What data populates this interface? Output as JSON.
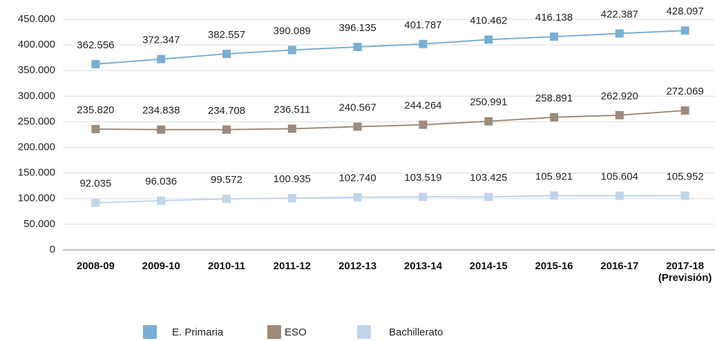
{
  "chart_data": {
    "type": "line",
    "categories": [
      "2008-09",
      "2009-10",
      "2010-11",
      "2011-12",
      "2012-13",
      "2013-14",
      "2014-15",
      "2015-16",
      "2016-17",
      "2017-18 (Previsión)"
    ],
    "series": [
      {
        "name": "E. Primaria",
        "color": "#7aafd3",
        "values": [
          362556,
          372347,
          382557,
          390089,
          396135,
          401787,
          410462,
          416138,
          422387,
          428097
        ],
        "value_labels": [
          "362.556",
          "372.347",
          "382.557",
          "390.089",
          "396.135",
          "401.787",
          "410.462",
          "416.138",
          "422.387",
          "428.097"
        ]
      },
      {
        "name": "ESO",
        "color": "#9d8b7b",
        "values": [
          235820,
          234838,
          234708,
          236511,
          240567,
          244264,
          250991,
          258891,
          262920,
          272069
        ],
        "value_labels": [
          "235.820",
          "234.838",
          "234.708",
          "236.511",
          "240.567",
          "244.264",
          "250.991",
          "258.891",
          "262.920",
          "272.069"
        ]
      },
      {
        "name": "Bachillerato",
        "color": "#bfd5ea",
        "values": [
          92035,
          96036,
          99572,
          100935,
          102740,
          103519,
          103425,
          105921,
          105604,
          105952
        ],
        "value_labels": [
          "92.035",
          "96.036",
          "99.572",
          "100.935",
          "102.740",
          "103.519",
          "103.425",
          "105.921",
          "105.604",
          "105.952"
        ]
      }
    ],
    "ylim": [
      0,
      450000
    ],
    "yticks": [
      0,
      {
        "value": 50000,
        "label": "50.000"
      },
      {
        "value": 100000,
        "label": "100.000"
      },
      {
        "value": 150000,
        "label": "150.000"
      },
      {
        "value": 200000,
        "label": "200.000"
      },
      {
        "value": 250000,
        "label": "250.000"
      },
      {
        "value": 300000,
        "label": "300.000"
      },
      {
        "value": 350000,
        "label": "350.000"
      },
      {
        "value": 400000,
        "label": "400.000"
      },
      {
        "value": 450000,
        "label": "450.000"
      }
    ],
    "grid": true,
    "legend": "bottom"
  }
}
